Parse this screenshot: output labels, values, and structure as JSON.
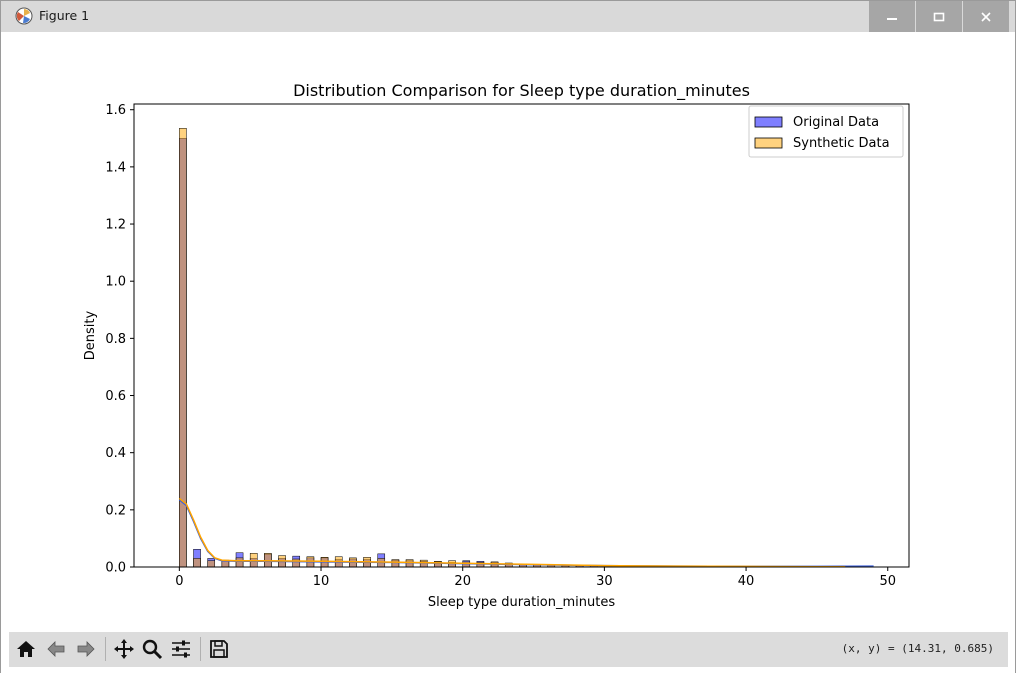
{
  "window": {
    "title": "Figure 1"
  },
  "toolbar": {
    "buttons": [
      "home-icon",
      "back-icon",
      "forward-icon",
      "pan-icon",
      "zoom-icon",
      "configure-icon",
      "save-icon"
    ],
    "coords_text": "(x, y) = (14.31, 0.685)"
  },
  "colors": {
    "original": "#0000ff",
    "synthetic": "#ffa500",
    "overlap": "#b07f6a"
  },
  "chart_data": {
    "type": "bar",
    "title": "Distribution Comparison for Sleep type duration_minutes",
    "xlabel": "Sleep type duration_minutes",
    "ylabel": "Density",
    "xlim": [
      -3.2,
      51.5
    ],
    "ylim": [
      0,
      1.62
    ],
    "xticks": [
      0,
      10,
      20,
      30,
      40,
      50
    ],
    "yticks": [
      0.0,
      0.2,
      0.4,
      0.6,
      0.8,
      1.0,
      1.2,
      1.4,
      1.6
    ],
    "ytick_labels": [
      "0.0",
      "0.2",
      "0.4",
      "0.6",
      "0.8",
      "1.0",
      "1.2",
      "1.4",
      "1.6"
    ],
    "bin_width": 0.5,
    "legend": {
      "position": "top-right",
      "entries": [
        "Original Data",
        "Synthetic Data"
      ]
    },
    "series": [
      {
        "name": "Original Data",
        "bins": [
          [
            0,
            1.5
          ],
          [
            1,
            0.062
          ],
          [
            2,
            0.03
          ],
          [
            3,
            0.02
          ],
          [
            4,
            0.05
          ],
          [
            5,
            0.03
          ],
          [
            6,
            0.045
          ],
          [
            7,
            0.03
          ],
          [
            8,
            0.038
          ],
          [
            9,
            0.032
          ],
          [
            10,
            0.032
          ],
          [
            11,
            0.026
          ],
          [
            12,
            0.028
          ],
          [
            13,
            0.026
          ],
          [
            14,
            0.046
          ],
          [
            15,
            0.024
          ],
          [
            16,
            0.022
          ],
          [
            17,
            0.02
          ],
          [
            18,
            0.018
          ],
          [
            19,
            0.016
          ],
          [
            20,
            0.022
          ],
          [
            21,
            0.02
          ],
          [
            22,
            0.016
          ],
          [
            23,
            0.01
          ],
          [
            24,
            0.008
          ],
          [
            25,
            0.008
          ],
          [
            26,
            0.006
          ],
          [
            27,
            0.006
          ],
          [
            28,
            0.005
          ],
          [
            29,
            0.005
          ],
          [
            30,
            0.004
          ],
          [
            31,
            0.003
          ],
          [
            32,
            0.003
          ],
          [
            34,
            0.002
          ],
          [
            36,
            0.002
          ],
          [
            38,
            0.002
          ],
          [
            40,
            0.002
          ],
          [
            42,
            0.002
          ],
          [
            44,
            0.002
          ],
          [
            46,
            0.002
          ],
          [
            48,
            0.003
          ]
        ],
        "kde": [
          [
            0,
            0.235
          ],
          [
            0.5,
            0.215
          ],
          [
            1,
            0.16
          ],
          [
            1.5,
            0.1
          ],
          [
            2,
            0.055
          ],
          [
            2.5,
            0.03
          ],
          [
            3,
            0.022
          ],
          [
            4,
            0.02
          ],
          [
            6,
            0.02
          ],
          [
            10,
            0.018
          ],
          [
            15,
            0.016
          ],
          [
            20,
            0.012
          ],
          [
            25,
            0.008
          ],
          [
            30,
            0.005
          ],
          [
            35,
            0.003
          ],
          [
            40,
            0.002
          ],
          [
            45,
            0.002
          ],
          [
            49,
            0.003
          ]
        ]
      },
      {
        "name": "Synthetic Data",
        "bins": [
          [
            0,
            1.535
          ],
          [
            1,
            0.03
          ],
          [
            2,
            0.022
          ],
          [
            3,
            0.024
          ],
          [
            4,
            0.032
          ],
          [
            5,
            0.048
          ],
          [
            6,
            0.048
          ],
          [
            7,
            0.04
          ],
          [
            8,
            0.028
          ],
          [
            9,
            0.036
          ],
          [
            10,
            0.034
          ],
          [
            11,
            0.036
          ],
          [
            12,
            0.032
          ],
          [
            13,
            0.034
          ],
          [
            14,
            0.03
          ],
          [
            15,
            0.026
          ],
          [
            16,
            0.026
          ],
          [
            17,
            0.024
          ],
          [
            18,
            0.02
          ],
          [
            19,
            0.022
          ],
          [
            20,
            0.018
          ],
          [
            21,
            0.016
          ],
          [
            22,
            0.018
          ],
          [
            23,
            0.014
          ],
          [
            24,
            0.01
          ],
          [
            25,
            0.008
          ],
          [
            26,
            0.008
          ],
          [
            27,
            0.006
          ],
          [
            28,
            0.006
          ],
          [
            29,
            0.006
          ],
          [
            30,
            0.005
          ],
          [
            31,
            0.005
          ],
          [
            32,
            0.004
          ]
        ],
        "kde": [
          [
            0,
            0.24
          ],
          [
            0.5,
            0.22
          ],
          [
            1,
            0.165
          ],
          [
            1.5,
            0.105
          ],
          [
            2,
            0.058
          ],
          [
            2.5,
            0.032
          ],
          [
            3,
            0.024
          ],
          [
            4,
            0.022
          ],
          [
            6,
            0.022
          ],
          [
            10,
            0.02
          ],
          [
            15,
            0.017
          ],
          [
            20,
            0.013
          ],
          [
            25,
            0.009
          ],
          [
            30,
            0.005
          ],
          [
            35,
            0.003
          ],
          [
            40,
            0.002
          ],
          [
            45,
            0.001
          ],
          [
            47,
            0.001
          ]
        ]
      }
    ]
  }
}
